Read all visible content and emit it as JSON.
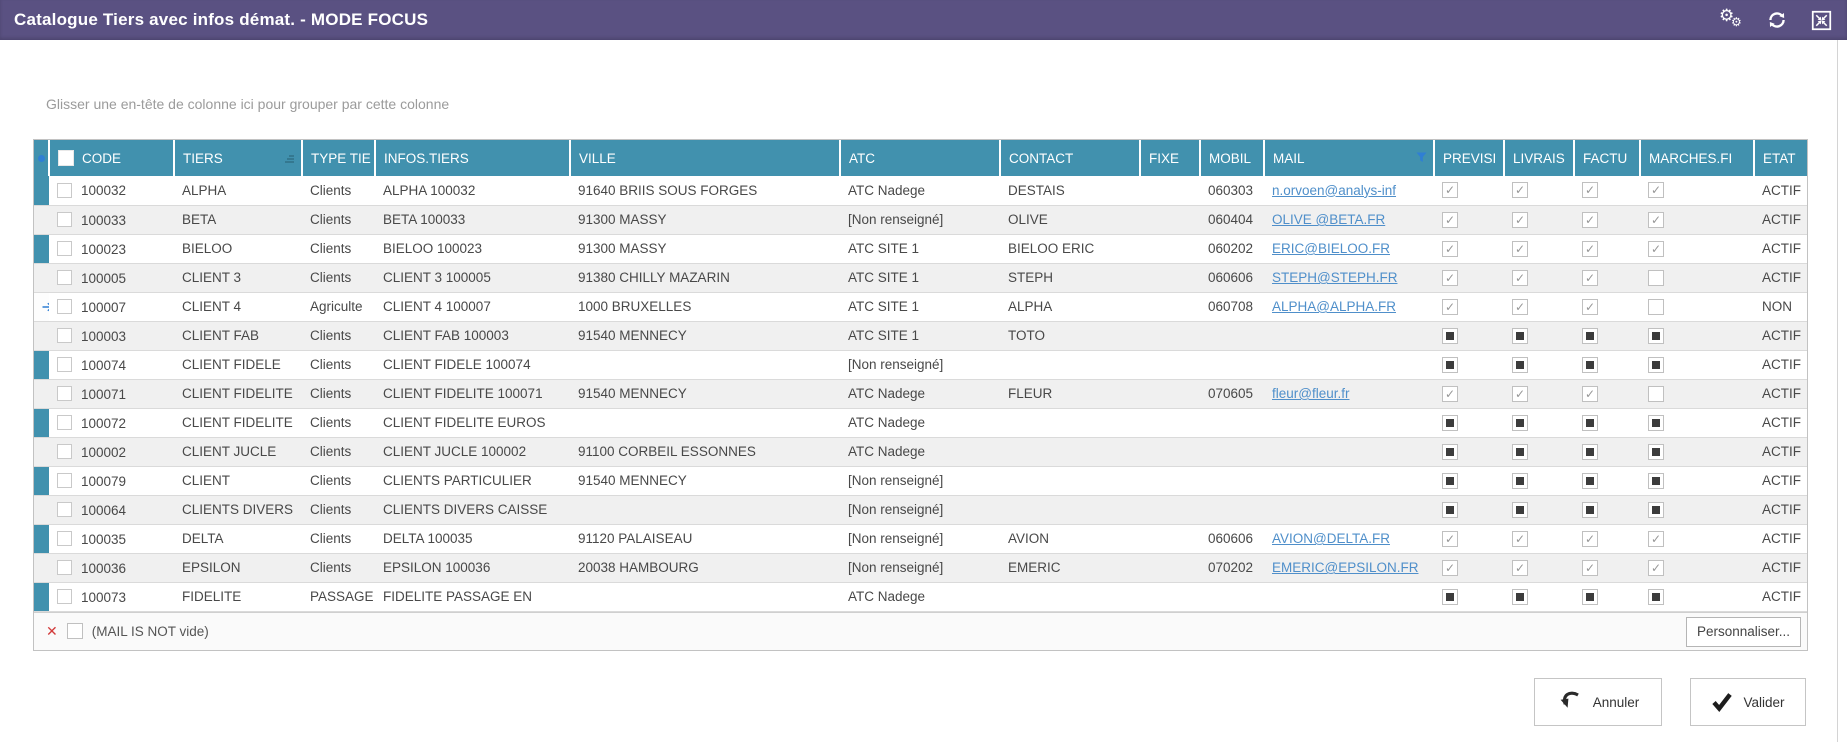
{
  "window": {
    "title": "Catalogue Tiers avec infos démat. - MODE FOCUS",
    "icons": {
      "settings": "double-gears",
      "refresh": "sync-arrows",
      "focus": "collapse-square"
    }
  },
  "group_hint": "Glisser une en-tête de colonne ici pour grouper par cette colonne",
  "table": {
    "columns": [
      {
        "key": "code",
        "label": "CODE"
      },
      {
        "key": "tiers",
        "label": "TIERS",
        "sort": true
      },
      {
        "key": "type",
        "label": "TYPE TIE"
      },
      {
        "key": "infos",
        "label": "INFOS.TIERS"
      },
      {
        "key": "ville",
        "label": "VILLE"
      },
      {
        "key": "atc",
        "label": "ATC"
      },
      {
        "key": "contact",
        "label": "CONTACT"
      },
      {
        "key": "fixe",
        "label": "FIXE"
      },
      {
        "key": "mobil",
        "label": "MOBIL"
      },
      {
        "key": "mail",
        "label": "MAIL",
        "filter": true
      },
      {
        "key": "previsi",
        "label": "PREVISI",
        "flag": true
      },
      {
        "key": "livrais",
        "label": "LIVRAIS",
        "flag": true
      },
      {
        "key": "factu",
        "label": "FACTU",
        "flag": true
      },
      {
        "key": "marches",
        "label": "MARCHES.FI",
        "flag": true
      },
      {
        "key": "etat",
        "label": "ETAT"
      }
    ],
    "rows": [
      {
        "code": "100032",
        "tiers": "ALPHA",
        "type": "Clients",
        "infos": "ALPHA 100032",
        "ville": "91640 BRIIS SOUS FORGES",
        "atc": "ATC Nadege",
        "contact": "DESTAIS",
        "fixe": "",
        "mobil": "060303",
        "mail": "n.orvoen@analys-inf",
        "previsi": "checked",
        "livrais": "checked",
        "factu": "checked",
        "marches": "checked",
        "etat": "ACTIF",
        "current": false
      },
      {
        "code": "100033",
        "tiers": "BETA",
        "type": "Clients",
        "infos": "BETA 100033",
        "ville": "91300 MASSY",
        "atc": "[Non renseigné]",
        "contact": "OLIVE",
        "fixe": "",
        "mobil": "060404",
        "mail": "OLIVE @BETA.FR",
        "previsi": "checked",
        "livrais": "checked",
        "factu": "checked",
        "marches": "checked",
        "etat": "ACTIF",
        "current": false
      },
      {
        "code": "100023",
        "tiers": "BIELOO",
        "type": "Clients",
        "infos": "BIELOO 100023",
        "ville": "91300 MASSY",
        "atc": "ATC SITE 1",
        "contact": "BIELOO ERIC",
        "fixe": "",
        "mobil": "060202",
        "mail": "ERIC@BIELOO.FR",
        "previsi": "checked",
        "livrais": "checked",
        "factu": "checked",
        "marches": "checked",
        "etat": "ACTIF",
        "current": false
      },
      {
        "code": "100005",
        "tiers": "CLIENT 3",
        "type": "Clients",
        "infos": "CLIENT 3 100005",
        "ville": "91380 CHILLY MAZARIN",
        "atc": "ATC SITE 1",
        "contact": "STEPH",
        "fixe": "",
        "mobil": "060606",
        "mail": "STEPH@STEPH.FR",
        "previsi": "checked",
        "livrais": "checked",
        "factu": "checked",
        "marches": "unchecked",
        "etat": "ACTIF",
        "current": false
      },
      {
        "code": "100007",
        "tiers": "CLIENT 4",
        "type": "Agriculte",
        "infos": "CLIENT 4 100007",
        "ville": "1000 BRUXELLES",
        "atc": "ATC SITE 1",
        "contact": "ALPHA",
        "fixe": "",
        "mobil": "060708",
        "mail": "ALPHA@ALPHA.FR",
        "previsi": "checked",
        "livrais": "checked",
        "factu": "checked",
        "marches": "unchecked",
        "etat": "NON",
        "current": true
      },
      {
        "code": "100003",
        "tiers": "CLIENT FAB",
        "type": "Clients",
        "infos": "CLIENT FAB 100003",
        "ville": "91540 MENNECY",
        "atc": "ATC SITE 1",
        "contact": "TOTO",
        "fixe": "",
        "mobil": "",
        "mail": "",
        "previsi": "indet",
        "livrais": "indet",
        "factu": "indet",
        "marches": "indet",
        "etat": "ACTIF",
        "current": false
      },
      {
        "code": "100074",
        "tiers": "CLIENT FIDELE",
        "type": "Clients",
        "infos": "CLIENT FIDELE 100074",
        "ville": "",
        "atc": "[Non renseigné]",
        "contact": "",
        "fixe": "",
        "mobil": "",
        "mail": "",
        "previsi": "indet",
        "livrais": "indet",
        "factu": "indet",
        "marches": "indet",
        "etat": "ACTIF",
        "current": false
      },
      {
        "code": "100071",
        "tiers": "CLIENT FIDELITE",
        "type": "Clients",
        "infos": "CLIENT FIDELITE 100071",
        "ville": "91540 MENNECY",
        "atc": "ATC Nadege",
        "contact": "FLEUR",
        "fixe": "",
        "mobil": "070605",
        "mail": "fleur@fleur.fr",
        "previsi": "checked",
        "livrais": "checked",
        "factu": "checked",
        "marches": "unchecked",
        "etat": "ACTIF",
        "current": false
      },
      {
        "code": "100072",
        "tiers": "CLIENT FIDELITE",
        "type": "Clients",
        "infos": "CLIENT FIDELITE EUROS",
        "ville": "",
        "atc": "ATC Nadege",
        "contact": "",
        "fixe": "",
        "mobil": "",
        "mail": "",
        "previsi": "indet",
        "livrais": "indet",
        "factu": "indet",
        "marches": "indet",
        "etat": "ACTIF",
        "current": false
      },
      {
        "code": "100002",
        "tiers": "CLIENT JUCLE",
        "type": "Clients",
        "infos": "CLIENT JUCLE 100002",
        "ville": "91100 CORBEIL ESSONNES",
        "atc": "ATC Nadege",
        "contact": "",
        "fixe": "",
        "mobil": "",
        "mail": "",
        "previsi": "indet",
        "livrais": "indet",
        "factu": "indet",
        "marches": "indet",
        "etat": "ACTIF",
        "current": false
      },
      {
        "code": "100079",
        "tiers": "CLIENT",
        "type": "Clients",
        "infos": "CLIENTS PARTICULIER",
        "ville": "91540 MENNECY",
        "atc": "[Non renseigné]",
        "contact": "",
        "fixe": "",
        "mobil": "",
        "mail": "",
        "previsi": "indet",
        "livrais": "indet",
        "factu": "indet",
        "marches": "indet",
        "etat": "ACTIF",
        "current": false
      },
      {
        "code": "100064",
        "tiers": "CLIENTS DIVERS",
        "type": "Clients",
        "infos": "CLIENTS DIVERS CAISSE",
        "ville": "",
        "atc": "[Non renseigné]",
        "contact": "",
        "fixe": "",
        "mobil": "",
        "mail": "",
        "previsi": "indet",
        "livrais": "indet",
        "factu": "indet",
        "marches": "indet",
        "etat": "ACTIF",
        "current": false
      },
      {
        "code": "100035",
        "tiers": "DELTA",
        "type": "Clients",
        "infos": "DELTA 100035",
        "ville": "91120 PALAISEAU",
        "atc": "[Non renseigné]",
        "contact": "AVION",
        "fixe": "",
        "mobil": "060606",
        "mail": "AVION@DELTA.FR",
        "previsi": "checked",
        "livrais": "checked",
        "factu": "checked",
        "marches": "checked",
        "etat": "ACTIF",
        "current": false
      },
      {
        "code": "100036",
        "tiers": "EPSILON",
        "type": "Clients",
        "infos": "EPSILON 100036",
        "ville": "20038 HAMBOURG",
        "atc": "[Non renseigné]",
        "contact": "EMERIC",
        "fixe": "",
        "mobil": "070202",
        "mail": "EMERIC@EPSILON.FR",
        "previsi": "checked",
        "livrais": "checked",
        "factu": "checked",
        "marches": "checked",
        "etat": "ACTIF",
        "current": false
      },
      {
        "code": "100073",
        "tiers": "FIDELITE",
        "type": "PASSAGE",
        "infos": "FIDELITE PASSAGE EN",
        "ville": "",
        "atc": "ATC Nadege",
        "contact": "",
        "fixe": "",
        "mobil": "",
        "mail": "",
        "previsi": "indet",
        "livrais": "indet",
        "factu": "indet",
        "marches": "indet",
        "etat": "ACTIF",
        "current": false
      }
    ]
  },
  "filter_bar": {
    "expression": "(MAIL IS NOT vide)",
    "enabled": false,
    "customize_label": "Personnaliser..."
  },
  "actions": {
    "cancel_label": "Annuler",
    "ok_label": "Valider"
  },
  "colors": {
    "titlebar": "#5a5182",
    "header": "#4191ae",
    "link": "#4f8fca",
    "accent_blue": "#2f7fd4",
    "error_red": "#d23b3b"
  }
}
